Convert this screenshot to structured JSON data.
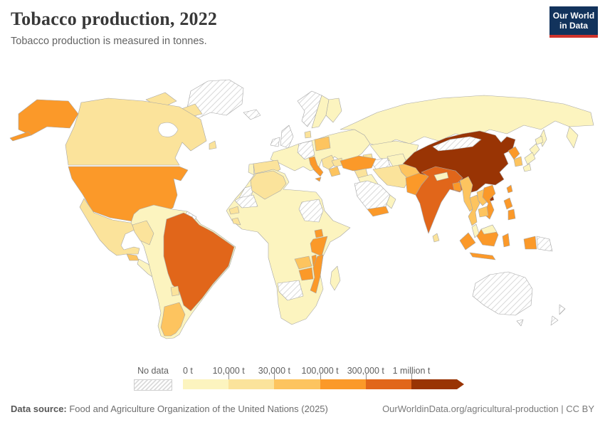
{
  "header": {
    "title": "Tobacco production, 2022",
    "subtitle": "Tobacco production is measured in tonnes.",
    "logo_line1": "Our World",
    "logo_line2": "in Data"
  },
  "legend": {
    "no_data_label": "No data",
    "labels": [
      "0 t",
      "10,000 t",
      "30,000 t",
      "100,000 t",
      "300,000 t",
      "1 million t"
    ]
  },
  "footer": {
    "source_label": "Data source:",
    "source_text": " Food and Agriculture Organization of the United Nations (2025)",
    "link_text": "OurWorldinData.org/agricultural-production | CC BY"
  },
  "colors": {
    "logo_navy": "#12335c",
    "logo_red": "#d0342c",
    "no_data_hatch_line": "#d8d8d8",
    "country_border": "#a6a6a6"
  },
  "chart_data": {
    "type": "choropleth",
    "title": "Tobacco production, 2022",
    "unit": "tonnes",
    "legend_thresholds": [
      "0 t",
      "10,000 t",
      "30,000 t",
      "100,000 t",
      "300,000 t",
      "1 million t"
    ],
    "bins": [
      {
        "id": "b1",
        "range": "0 – 10,000 t",
        "color": "#fcf4bf"
      },
      {
        "id": "b2",
        "range": "10,000 – 30,000 t",
        "color": "#fbe39b"
      },
      {
        "id": "b3",
        "range": "30,000 – 100,000 t",
        "color": "#fdc45f"
      },
      {
        "id": "b4",
        "range": "100,000 – 300,000 t",
        "color": "#fb9929"
      },
      {
        "id": "b5",
        "range": "300,000 – 1 million t",
        "color": "#e1661a"
      },
      {
        "id": "b6",
        "range": "over 1 million t",
        "color": "#993404"
      }
    ],
    "country_bins": {
      "china": "b6",
      "india": "b5",
      "brazil": "b5",
      "united-states": "b4",
      "italy": "b4",
      "turkey": "b4",
      "pakistan": "b4",
      "bangladesh": "b4",
      "vietnam": "b4",
      "north-korea": "b4",
      "taiwan": "b4",
      "philippines": "b4",
      "indonesia": "b4",
      "tanzania": "b4",
      "uganda": "b4",
      "mozambique": "b4",
      "malawi": "b4",
      "zimbabwe": "b4",
      "yemen": "b4",
      "poland": "b3",
      "greece": "b3",
      "argentina": "b3",
      "zambia": "b3",
      "myanmar": "b3",
      "thailand": "b3",
      "laos": "b3",
      "cambodia": "b3",
      "south-korea": "b3",
      "afghanistan": "b3",
      "guatemala": "b3",
      "canada": "b2",
      "mexico": "b2",
      "cuba": "b2",
      "hispaniola": "b2",
      "denmark": "b2",
      "spain": "b2",
      "balkans": "b2",
      "bulgaria": "b2",
      "caucasus": "b2",
      "algeria": "b2",
      "senegal": "b2",
      "sierra-leone": "b2",
      "peru": "b2",
      "paraguay": "b2",
      "iran": "b2",
      "syria": "b2",
      "sri-lanka": "b2",
      "russia": "b1",
      "kazakhstan": "b1",
      "uzbekistan": "b1",
      "europe-other": "b1",
      "sweden": "b1",
      "finland": "b1",
      "portugal": "b1",
      "africa-other": "b1",
      "madagascar": "b1",
      "south-america-other": "b1",
      "central-america": "b1",
      "japan": "b1",
      "iraq": "b1",
      "oman": "b1",
      "nepal": "b1",
      "malaysia": "b1",
      "greenland": "no_data",
      "iceland": "no_data",
      "norway": "no_data",
      "united-kingdom": "no_data",
      "ireland": "no_data",
      "germany": "no_data",
      "mongolia": "no_data",
      "saudi-arabia": "no_data",
      "turkmenistan": "no_data",
      "sudan": "no_data",
      "mauritania": "no_data",
      "western-sahara": "no_data",
      "namibia-botswana": "no_data",
      "australia": "no_data",
      "new-zealand": "no_data",
      "papua-new-guinea": "no_data",
      "guyana": "no_data"
    }
  }
}
